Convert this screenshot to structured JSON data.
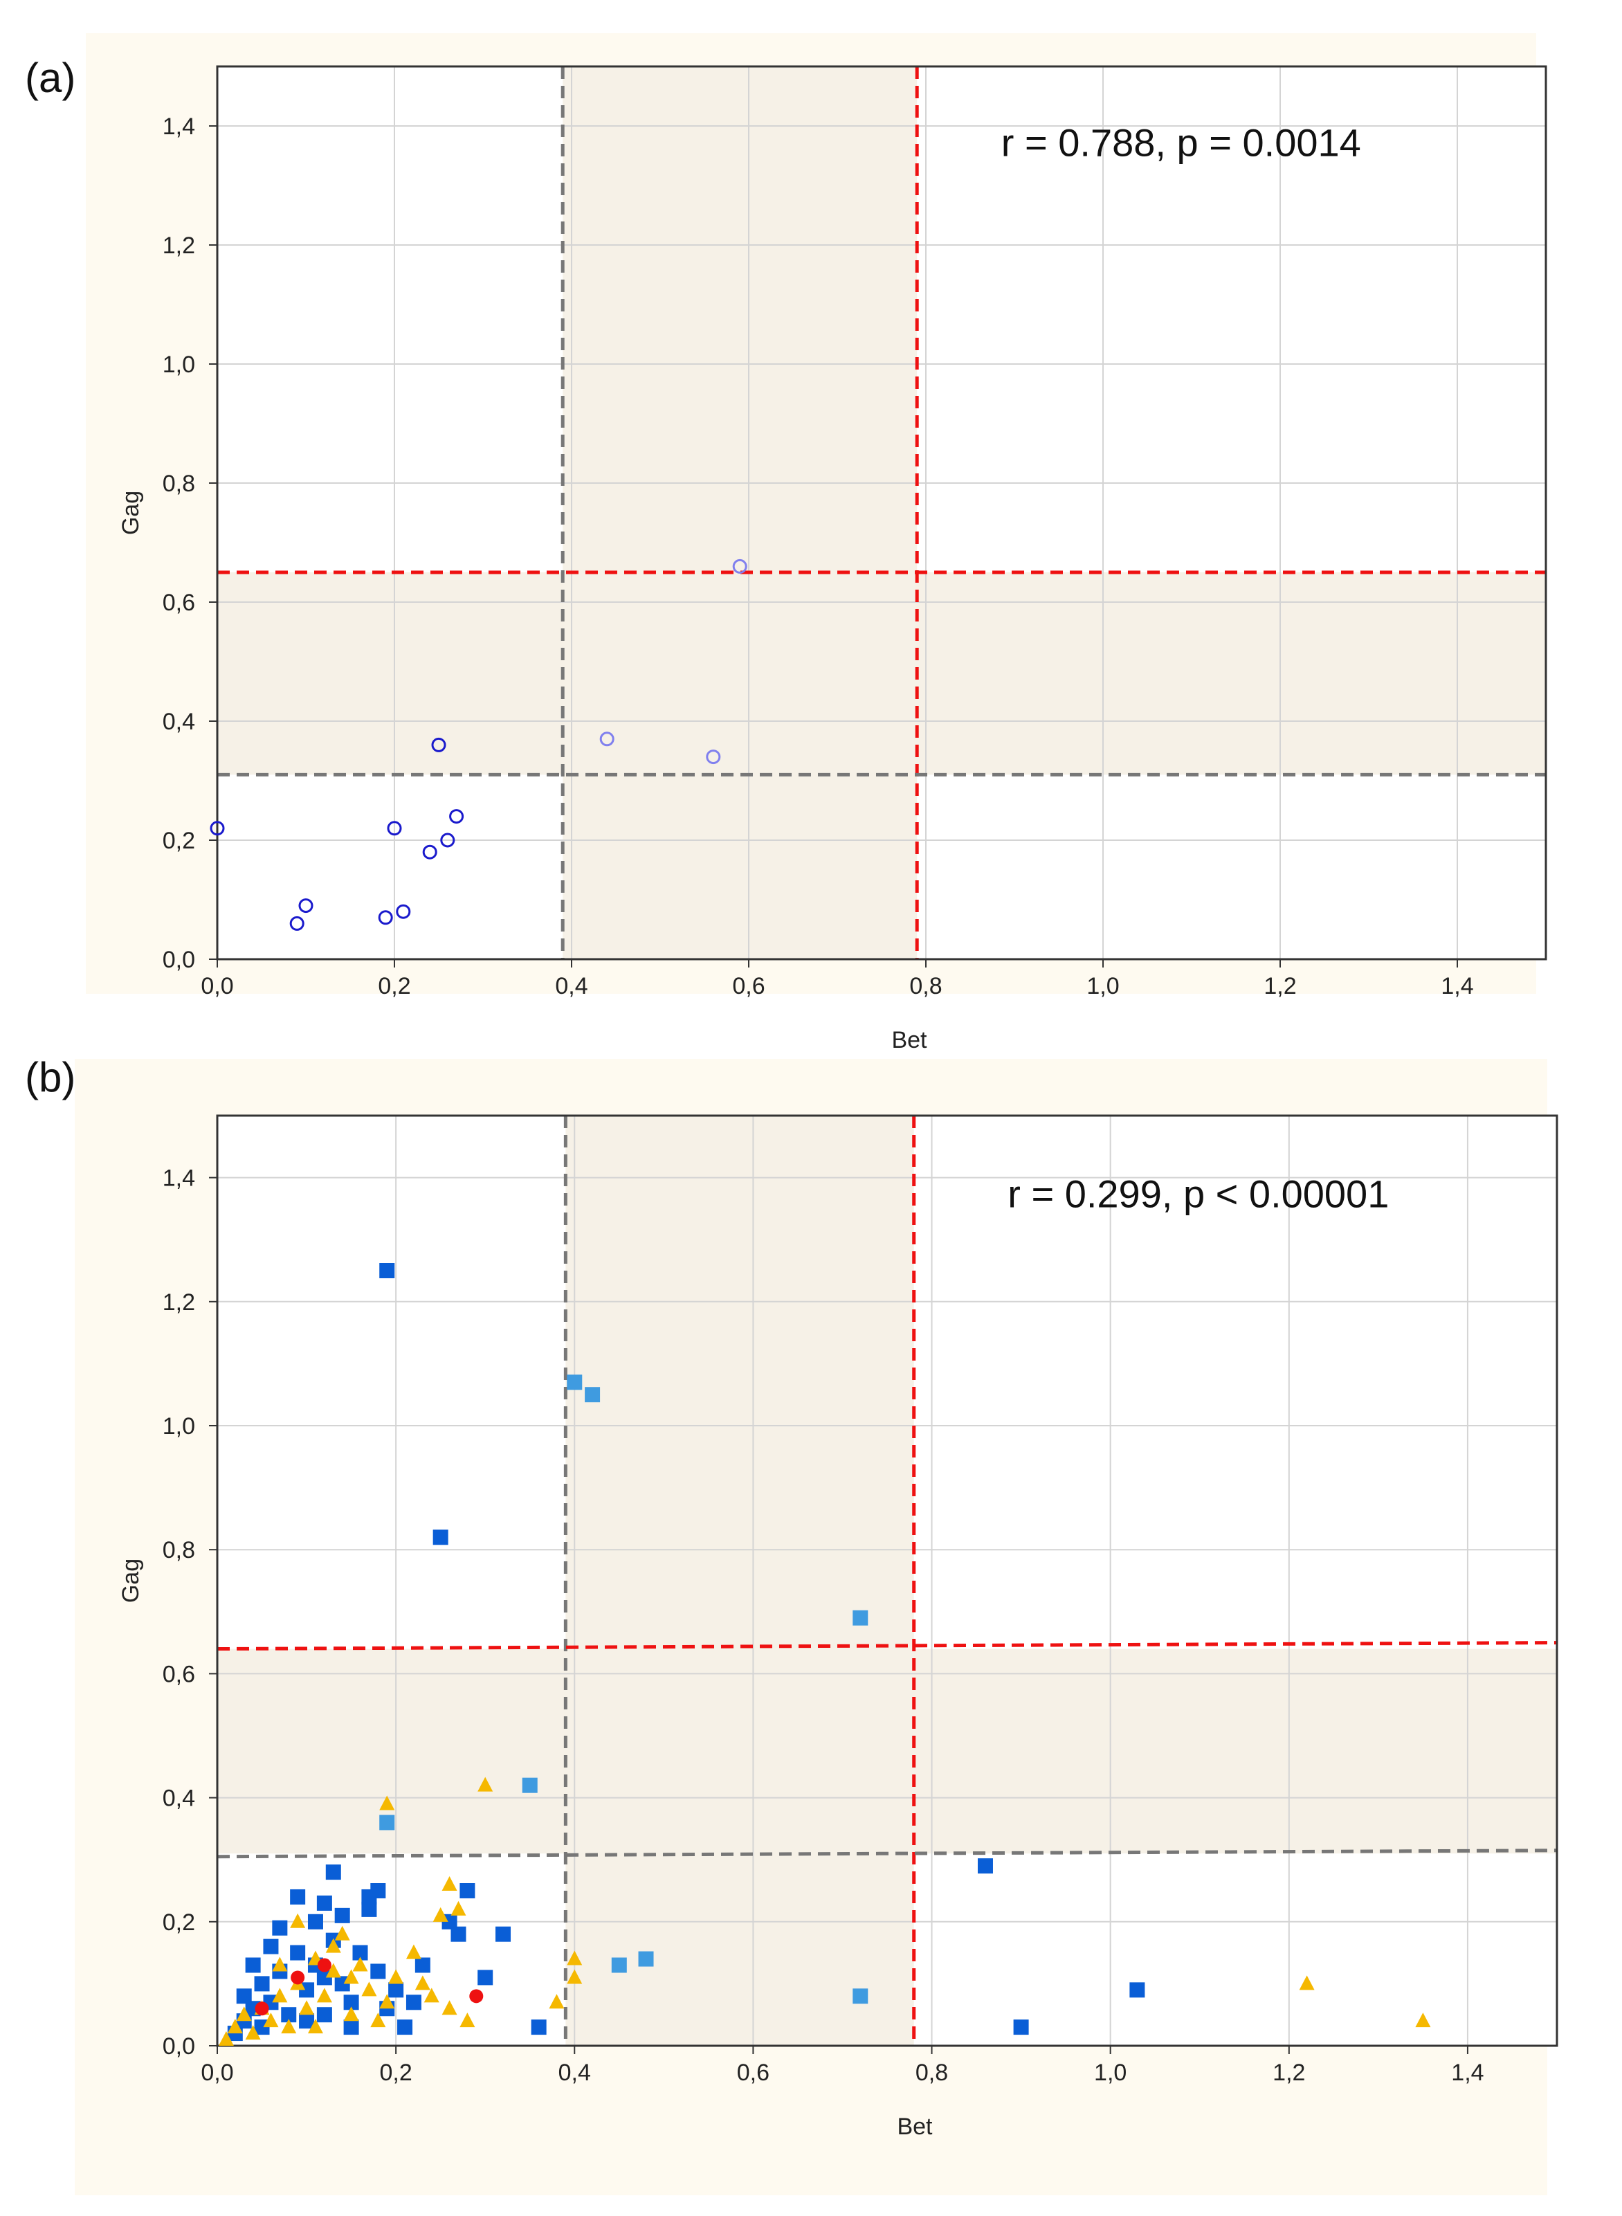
{
  "chart_data": [
    {
      "panel_label": "(a)",
      "type": "scatter",
      "xlabel": "Bet",
      "ylabel": "Gag",
      "xlim": [
        0,
        1.5
      ],
      "ylim": [
        0,
        1.5
      ],
      "x_ticks": [
        0,
        0.2,
        0.4,
        0.6,
        0.8,
        1.0,
        1.2,
        1.4
      ],
      "x_tick_labels": [
        "0,0",
        "0,2",
        "0,4",
        "0,6",
        "0,8",
        "1,0",
        "1,2",
        "1,4"
      ],
      "y_ticks": [
        0,
        0.2,
        0.4,
        0.6,
        0.8,
        1.0,
        1.2,
        1.4
      ],
      "y_tick_labels": [
        "0,0",
        "0,2",
        "0,4",
        "0,6",
        "0,8",
        "1,0",
        "1,2",
        "1,4"
      ],
      "grid": true,
      "annotation": "r = 0.788, p = 0.0014",
      "annotation_position": "top-right",
      "shaded_bands": {
        "x": [
          0.39,
          0.79
        ],
        "y": [
          0.31,
          0.65
        ],
        "color": "#f6f1e7"
      },
      "reference_lines": [
        {
          "orientation": "vertical",
          "value": 0.39,
          "color": "#777777",
          "style": "dashed"
        },
        {
          "orientation": "vertical",
          "value": 0.79,
          "color": "#ee1111",
          "style": "dashed"
        },
        {
          "orientation": "horizontal",
          "value": 0.31,
          "color": "#777777",
          "style": "dashed"
        },
        {
          "orientation": "horizontal",
          "value": 0.65,
          "color": "#ee1111",
          "style": "dashed"
        }
      ],
      "series": [
        {
          "name": "dark blue circles",
          "marker": "circle",
          "color": "#1a1acc",
          "points": [
            [
              0.0,
              0.22
            ],
            [
              0.09,
              0.06
            ],
            [
              0.1,
              0.09
            ],
            [
              0.19,
              0.07
            ],
            [
              0.2,
              0.22
            ],
            [
              0.21,
              0.08
            ],
            [
              0.24,
              0.18
            ],
            [
              0.25,
              0.36
            ],
            [
              0.26,
              0.2
            ],
            [
              0.27,
              0.24
            ]
          ]
        },
        {
          "name": "light blue circles",
          "marker": "circle",
          "color": "#8080ee",
          "points": [
            [
              0.44,
              0.37
            ],
            [
              0.56,
              0.34
            ],
            [
              0.59,
              0.66
            ]
          ]
        }
      ]
    },
    {
      "panel_label": "(b)",
      "type": "scatter",
      "xlabel": "Bet",
      "ylabel": "Gag",
      "xlim": [
        0,
        1.5
      ],
      "ylim": [
        0,
        1.5
      ],
      "x_ticks": [
        0,
        0.2,
        0.4,
        0.6,
        0.8,
        1.0,
        1.2,
        1.4
      ],
      "x_tick_labels": [
        "0,0",
        "0,2",
        "0,4",
        "0,6",
        "0,8",
        "1,0",
        "1,2",
        "1,4"
      ],
      "y_ticks": [
        0,
        0.2,
        0.4,
        0.6,
        0.8,
        1.0,
        1.2,
        1.4
      ],
      "y_tick_labels": [
        "0,0",
        "0,2",
        "0,4",
        "0,6",
        "0,8",
        "1,0",
        "1,2",
        "1,4"
      ],
      "grid": true,
      "annotation": "r = 0.299, p < 0.00001",
      "annotation_position": "top-right",
      "shaded_bands": {
        "x": [
          0.39,
          0.78
        ],
        "y": [
          0.31,
          0.64
        ],
        "color": "#f6f1e7"
      },
      "reference_lines": [
        {
          "orientation": "vertical",
          "value": 0.39,
          "color": "#777777",
          "style": "dashed"
        },
        {
          "orientation": "vertical",
          "value": 0.78,
          "color": "#ee1111",
          "style": "dashed"
        },
        {
          "orientation": "horizontal",
          "value": [
            0.305,
            0.315
          ],
          "color": "#777777",
          "style": "dashed"
        },
        {
          "orientation": "horizontal",
          "value": [
            0.64,
            0.65
          ],
          "color": "#ee1111",
          "style": "dashed"
        }
      ],
      "series": [
        {
          "name": "dark blue squares",
          "marker": "square",
          "color": "#0a5ed6",
          "points": [
            [
              0.19,
              1.25
            ],
            [
              0.25,
              0.82
            ],
            [
              0.86,
              0.29
            ],
            [
              1.03,
              0.09
            ],
            [
              0.9,
              0.03
            ],
            [
              0.36,
              0.03
            ],
            [
              0.02,
              0.02
            ],
            [
              0.03,
              0.04
            ],
            [
              0.04,
              0.06
            ],
            [
              0.05,
              0.03
            ],
            [
              0.05,
              0.1
            ],
            [
              0.06,
              0.07
            ],
            [
              0.07,
              0.19
            ],
            [
              0.07,
              0.12
            ],
            [
              0.08,
              0.05
            ],
            [
              0.09,
              0.24
            ],
            [
              0.09,
              0.15
            ],
            [
              0.1,
              0.09
            ],
            [
              0.11,
              0.2
            ],
            [
              0.11,
              0.13
            ],
            [
              0.12,
              0.23
            ],
            [
              0.12,
              0.05
            ],
            [
              0.13,
              0.28
            ],
            [
              0.13,
              0.17
            ],
            [
              0.14,
              0.21
            ],
            [
              0.14,
              0.1
            ],
            [
              0.15,
              0.07
            ],
            [
              0.16,
              0.15
            ],
            [
              0.17,
              0.24
            ],
            [
              0.17,
              0.22
            ],
            [
              0.18,
              0.25
            ],
            [
              0.18,
              0.12
            ],
            [
              0.19,
              0.06
            ],
            [
              0.2,
              0.09
            ],
            [
              0.21,
              0.03
            ],
            [
              0.23,
              0.13
            ],
            [
              0.26,
              0.2
            ],
            [
              0.27,
              0.18
            ],
            [
              0.28,
              0.25
            ],
            [
              0.3,
              0.11
            ],
            [
              0.32,
              0.18
            ],
            [
              0.04,
              0.13
            ],
            [
              0.06,
              0.16
            ],
            [
              0.1,
              0.04
            ],
            [
              0.12,
              0.11
            ],
            [
              0.22,
              0.07
            ],
            [
              0.03,
              0.08
            ],
            [
              0.15,
              0.03
            ]
          ]
        },
        {
          "name": "light blue squares",
          "marker": "square",
          "color": "#3f9be0",
          "points": [
            [
              0.4,
              1.07
            ],
            [
              0.42,
              1.05
            ],
            [
              0.72,
              0.69
            ],
            [
              0.35,
              0.42
            ],
            [
              0.19,
              0.36
            ],
            [
              0.45,
              0.13
            ],
            [
              0.48,
              0.14
            ],
            [
              0.72,
              0.08
            ]
          ]
        },
        {
          "name": "yellow triangles",
          "marker": "triangle",
          "color": "#f5b800",
          "points": [
            [
              0.19,
              0.39
            ],
            [
              0.3,
              0.42
            ],
            [
              0.26,
              0.26
            ],
            [
              0.25,
              0.21
            ],
            [
              0.27,
              0.22
            ],
            [
              0.4,
              0.14
            ],
            [
              0.4,
              0.11
            ],
            [
              0.38,
              0.07
            ],
            [
              1.22,
              0.1
            ],
            [
              1.35,
              0.04
            ],
            [
              0.01,
              0.01
            ],
            [
              0.02,
              0.03
            ],
            [
              0.03,
              0.05
            ],
            [
              0.04,
              0.02
            ],
            [
              0.05,
              0.06
            ],
            [
              0.06,
              0.04
            ],
            [
              0.07,
              0.08
            ],
            [
              0.08,
              0.03
            ],
            [
              0.09,
              0.1
            ],
            [
              0.1,
              0.06
            ],
            [
              0.11,
              0.14
            ],
            [
              0.12,
              0.08
            ],
            [
              0.13,
              0.12
            ],
            [
              0.14,
              0.18
            ],
            [
              0.15,
              0.05
            ],
            [
              0.16,
              0.13
            ],
            [
              0.17,
              0.09
            ],
            [
              0.18,
              0.04
            ],
            [
              0.2,
              0.11
            ],
            [
              0.22,
              0.15
            ],
            [
              0.24,
              0.08
            ],
            [
              0.26,
              0.06
            ],
            [
              0.28,
              0.04
            ],
            [
              0.09,
              0.2
            ],
            [
              0.13,
              0.16
            ],
            [
              0.07,
              0.13
            ],
            [
              0.11,
              0.03
            ],
            [
              0.15,
              0.11
            ],
            [
              0.19,
              0.07
            ],
            [
              0.23,
              0.1
            ]
          ]
        },
        {
          "name": "red circles",
          "marker": "circle",
          "color": "#ee1111",
          "points": [
            [
              0.09,
              0.11
            ],
            [
              0.12,
              0.13
            ],
            [
              0.29,
              0.08
            ],
            [
              0.05,
              0.06
            ]
          ]
        }
      ]
    }
  ]
}
